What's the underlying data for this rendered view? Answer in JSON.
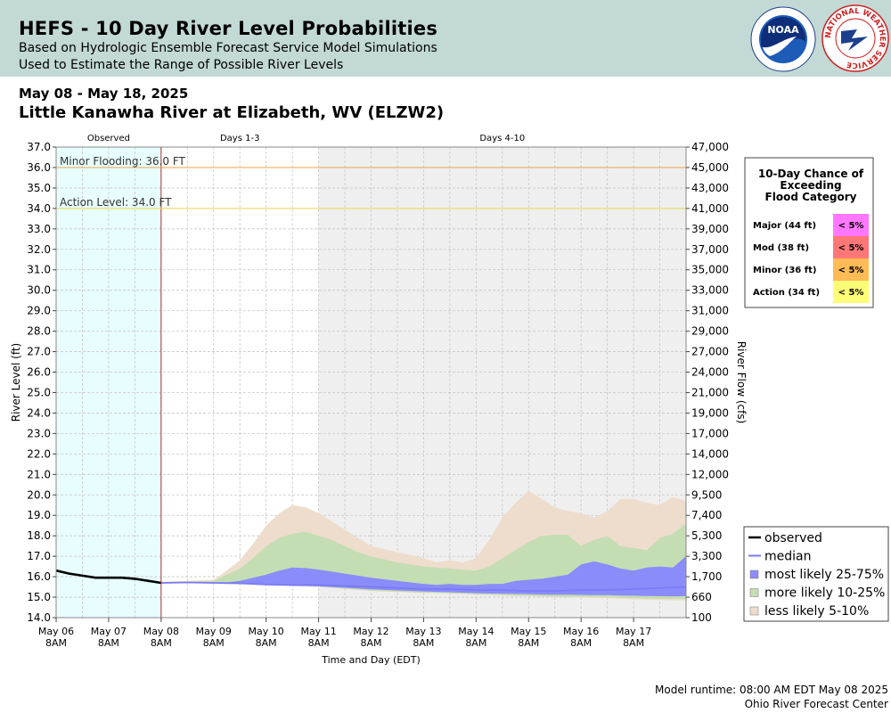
{
  "header": {
    "title": "HEFS - 10 Day River Level Probabilities",
    "subtitle1": "Based on Hydrologic Ensemble Forecast Service Model Simulations",
    "subtitle2": "Used to Estimate the Range of Possible River Levels",
    "logos": [
      "noaa-logo",
      "nws-logo"
    ],
    "logo_text": {
      "noaa": "NOAA",
      "nws": "NATIONAL WEATHER SERVICE"
    }
  },
  "date_range": "May 08 - May 18, 2025",
  "station": "Little Kanawha River at Elizabeth, WV (ELZW2)",
  "footer": {
    "runtime": "Model runtime: 08:00 AM EDT May 08 2025",
    "center": "Ohio River Forecast Center"
  },
  "chart_data": {
    "type": "area",
    "xlabel": "Time and Day (EDT)",
    "ylabel": "River Level (ft)",
    "y2label": "River Flow (cfs)",
    "ylim": [
      14.0,
      37.0
    ],
    "xlim": [
      0,
      12
    ],
    "y_ticks": [
      "14.0",
      "15.0",
      "16.0",
      "17.0",
      "18.0",
      "19.0",
      "20.0",
      "21.0",
      "22.0",
      "23.0",
      "24.0",
      "25.0",
      "26.0",
      "27.0",
      "28.0",
      "29.0",
      "30.0",
      "31.0",
      "32.0",
      "33.0",
      "34.0",
      "35.0",
      "36.0",
      "37.0"
    ],
    "y2_ticks": [
      "100",
      "660",
      "1,700",
      "3,300",
      "5,300",
      "7,400",
      "9,500",
      "12,000",
      "14,000",
      "17,000",
      "19,000",
      "21,000",
      "24,000",
      "27,000",
      "29,000",
      "31,000",
      "33,000",
      "35,000",
      "37,000",
      "39,000",
      "41,000",
      "43,000",
      "45,000",
      "47,000"
    ],
    "x_ticks": [
      {
        "day": "May 06",
        "time": "8AM"
      },
      {
        "day": "May 07",
        "time": "8AM"
      },
      {
        "day": "May 08",
        "time": "8AM"
      },
      {
        "day": "May 09",
        "time": "8AM"
      },
      {
        "day": "May 10",
        "time": "8AM"
      },
      {
        "day": "May 11",
        "time": "8AM"
      },
      {
        "day": "May 12",
        "time": "8AM"
      },
      {
        "day": "May 13",
        "time": "8AM"
      },
      {
        "day": "May 14",
        "time": "8AM"
      },
      {
        "day": "May 15",
        "time": "8AM"
      },
      {
        "day": "May 16",
        "time": "8AM"
      },
      {
        "day": "May 17",
        "time": "8AM"
      }
    ],
    "periods": [
      {
        "label": "Observed",
        "start": 0,
        "end": 2,
        "color": "#e8fdfe"
      },
      {
        "label": "Days 1-3",
        "start": 2,
        "end": 5,
        "color": "#ffffff"
      },
      {
        "label": "Days 4-10",
        "start": 5,
        "end": 12,
        "color": "#efefef"
      }
    ],
    "thresholds": [
      {
        "label": "Minor Flooding: 36.0 FT",
        "value": 36.0,
        "color": "#e8a24a"
      },
      {
        "label": "Action Level: 34.0 FT",
        "value": 34.0,
        "color": "#e8d84a"
      }
    ],
    "series": [
      {
        "name": "observed",
        "color": "#000000",
        "x": [
          0,
          0.25,
          0.5,
          0.75,
          1,
          1.25,
          1.5,
          1.75,
          2
        ],
        "y": [
          16.3,
          16.15,
          16.05,
          15.95,
          15.95,
          15.95,
          15.9,
          15.8,
          15.7
        ]
      },
      {
        "name": "median",
        "color": "#7b7bf5",
        "x": [
          2,
          2.5,
          3,
          3.5,
          4,
          4.5,
          5,
          5.5,
          6,
          6.5,
          7,
          7.5,
          8,
          8.5,
          9,
          9.5,
          10,
          10.5,
          11,
          11.5,
          12
        ],
        "y": [
          15.7,
          15.72,
          15.7,
          15.68,
          15.62,
          15.6,
          15.6,
          15.55,
          15.5,
          15.45,
          15.4,
          15.4,
          15.35,
          15.35,
          15.3,
          15.3,
          15.35,
          15.35,
          15.4,
          15.45,
          15.5
        ]
      }
    ],
    "bands": [
      {
        "name": "less likely 5-10%",
        "color": "#eeddcc",
        "x": [
          2,
          2.5,
          3,
          3.25,
          3.5,
          3.75,
          4,
          4.25,
          4.5,
          4.75,
          5,
          5.25,
          5.5,
          5.75,
          6,
          6.5,
          7,
          7.25,
          7.5,
          7.75,
          8,
          8.25,
          8.5,
          8.75,
          9,
          9.25,
          9.5,
          9.75,
          10,
          10.25,
          10.5,
          10.75,
          11,
          11.25,
          11.5,
          11.75,
          12
        ],
        "hi": [
          15.75,
          15.8,
          15.85,
          16.3,
          16.8,
          17.6,
          18.5,
          19.1,
          19.5,
          19.4,
          19.1,
          18.7,
          18.3,
          17.9,
          17.5,
          17.2,
          16.9,
          16.7,
          16.8,
          16.7,
          16.9,
          17.8,
          18.9,
          19.6,
          20.2,
          19.8,
          19.4,
          19.2,
          19.1,
          18.9,
          19.2,
          19.8,
          19.8,
          19.6,
          19.5,
          19.9,
          19.7
        ],
        "lo": [
          15.65,
          15.68,
          15.66,
          15.64,
          15.62,
          15.6,
          15.58,
          15.56,
          15.54,
          15.52,
          15.5,
          15.45,
          15.4,
          15.35,
          15.3,
          15.25,
          15.2,
          15.2,
          15.18,
          15.15,
          15.12,
          15.1,
          15.08,
          15.06,
          15.05,
          15.03,
          15.0,
          15.0,
          14.98,
          14.96,
          14.95,
          14.92,
          14.9,
          14.88,
          14.86,
          14.85,
          14.85
        ]
      },
      {
        "name": "more likely 10-25%",
        "color": "#c5ddb3",
        "x": [
          2,
          2.5,
          3,
          3.25,
          3.5,
          3.75,
          4,
          4.25,
          4.5,
          4.75,
          5,
          5.25,
          5.5,
          5.75,
          6,
          6.5,
          7,
          7.25,
          7.5,
          7.75,
          8,
          8.25,
          8.5,
          8.75,
          9,
          9.25,
          9.5,
          9.75,
          10,
          10.25,
          10.5,
          10.75,
          11,
          11.25,
          11.5,
          11.75,
          12
        ],
        "hi": [
          15.72,
          15.76,
          15.8,
          16.1,
          16.4,
          16.9,
          17.5,
          17.9,
          18.1,
          18.2,
          18.0,
          17.8,
          17.5,
          17.2,
          17.0,
          16.7,
          16.5,
          16.45,
          16.4,
          16.35,
          16.3,
          16.5,
          16.9,
          17.3,
          17.7,
          18.0,
          18.05,
          18.05,
          17.5,
          17.8,
          18.0,
          17.5,
          17.4,
          17.3,
          17.9,
          18.1,
          18.6
        ],
        "lo": [
          15.68,
          15.69,
          15.67,
          15.65,
          15.63,
          15.61,
          15.59,
          15.57,
          15.55,
          15.53,
          15.51,
          15.47,
          15.42,
          15.37,
          15.32,
          15.27,
          15.22,
          15.21,
          15.19,
          15.16,
          15.14,
          15.12,
          15.1,
          15.08,
          15.07,
          15.05,
          15.03,
          15.02,
          15.01,
          15.0,
          14.99,
          14.97,
          14.95,
          14.93,
          14.92,
          14.9,
          14.9
        ]
      },
      {
        "name": "most likely 25-75%",
        "color": "#8b8cfc",
        "x": [
          2,
          2.5,
          3,
          3.25,
          3.5,
          3.75,
          4,
          4.25,
          4.5,
          4.75,
          5,
          5.25,
          5.5,
          5.75,
          6,
          6.5,
          7,
          7.25,
          7.5,
          7.75,
          8,
          8.25,
          8.5,
          8.75,
          9,
          9.25,
          9.5,
          9.75,
          10,
          10.25,
          10.5,
          10.75,
          11,
          11.25,
          11.5,
          11.75,
          12
        ],
        "hi": [
          15.72,
          15.74,
          15.72,
          15.72,
          15.8,
          15.95,
          16.1,
          16.3,
          16.45,
          16.42,
          16.35,
          16.25,
          16.15,
          16.05,
          15.95,
          15.8,
          15.65,
          15.6,
          15.65,
          15.6,
          15.6,
          15.65,
          15.65,
          15.8,
          15.85,
          15.9,
          16.0,
          16.1,
          16.6,
          16.75,
          16.6,
          16.4,
          16.3,
          16.45,
          16.5,
          16.45,
          17.0
        ],
        "lo": [
          15.7,
          15.7,
          15.68,
          15.67,
          15.65,
          15.62,
          15.6,
          15.58,
          15.56,
          15.55,
          15.53,
          15.5,
          15.46,
          15.42,
          15.38,
          15.33,
          15.28,
          15.26,
          15.24,
          15.22,
          15.2,
          15.18,
          15.17,
          15.16,
          15.15,
          15.13,
          15.12,
          15.12,
          15.11,
          15.1,
          15.1,
          15.08,
          15.07,
          15.06,
          15.05,
          15.04,
          15.05
        ]
      }
    ],
    "legend": {
      "placement": "bottom-right",
      "entries": [
        "observed",
        "median",
        "most likely 25-75%",
        "more likely 10-25%",
        "less likely 5-10%"
      ]
    },
    "flood_table": {
      "title": [
        "10-Day Chance of",
        "Exceeding",
        "Flood Category"
      ],
      "rows": [
        {
          "label": "Major (44 ft)",
          "value": "< 5%",
          "color": "#ff77ff"
        },
        {
          "label": "Mod (38 ft)",
          "value": "< 5%",
          "color": "#ff7777"
        },
        {
          "label": "Minor (36 ft)",
          "value": "< 5%",
          "color": "#ffbb55"
        },
        {
          "label": "Action (34 ft)",
          "value": "< 5%",
          "color": "#ffff77"
        }
      ]
    },
    "grid": true
  }
}
